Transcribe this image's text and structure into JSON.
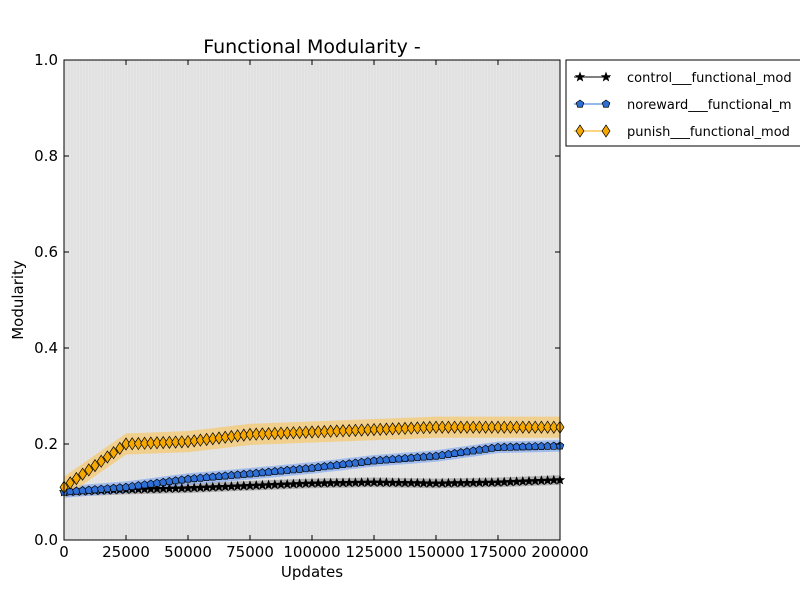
{
  "chart_data": {
    "type": "line",
    "title": "Functional Modularity -",
    "xlabel": "Updates",
    "ylabel": "Modularity",
    "xlim": [
      0,
      200000
    ],
    "ylim": [
      0.0,
      1.0
    ],
    "x_ticks": [
      0,
      25000,
      50000,
      75000,
      100000,
      125000,
      150000,
      175000,
      200000
    ],
    "y_ticks": [
      0.0,
      0.2,
      0.4,
      0.6,
      0.8,
      1.0
    ],
    "x_tick_labels": [
      "0",
      "25000",
      "50000",
      "75000",
      "100000",
      "125000",
      "150000",
      "175000",
      "200000"
    ],
    "y_tick_labels": [
      "0.0",
      "0.2",
      "0.4",
      "0.6",
      "0.8",
      "1.0"
    ],
    "grid": false,
    "legend_position": "outside-top-right",
    "plot_background": "#e5e5e5",
    "series": [
      {
        "name": "control___functional_modularity",
        "legend_label": "control___functional_mod",
        "color": "#000000",
        "band_color": "#a0a0a0",
        "marker": "star",
        "x": [
          0,
          25000,
          50000,
          75000,
          100000,
          125000,
          150000,
          175000,
          200000
        ],
        "y": [
          0.1,
          0.105,
          0.108,
          0.113,
          0.118,
          0.12,
          0.118,
          0.12,
          0.125
        ]
      },
      {
        "name": "noreward___functional_modularity",
        "legend_label": "noreward___functional_m",
        "color": "#2e6fd6",
        "band_color": "#8aaef0",
        "marker": "pentagon",
        "x": [
          0,
          25000,
          50000,
          75000,
          100000,
          125000,
          150000,
          175000,
          200000
        ],
        "y": [
          0.1,
          0.11,
          0.127,
          0.138,
          0.15,
          0.165,
          0.175,
          0.193,
          0.196
        ]
      },
      {
        "name": "punish___functional_modularity",
        "legend_label": "punish___functional_mod",
        "color": "#f5a800",
        "band_color": "#f5c870",
        "marker": "diamond",
        "x": [
          0,
          25000,
          50000,
          75000,
          100000,
          125000,
          150000,
          175000,
          200000
        ],
        "y": [
          0.11,
          0.2,
          0.205,
          0.22,
          0.225,
          0.23,
          0.235,
          0.235,
          0.235
        ]
      }
    ]
  }
}
